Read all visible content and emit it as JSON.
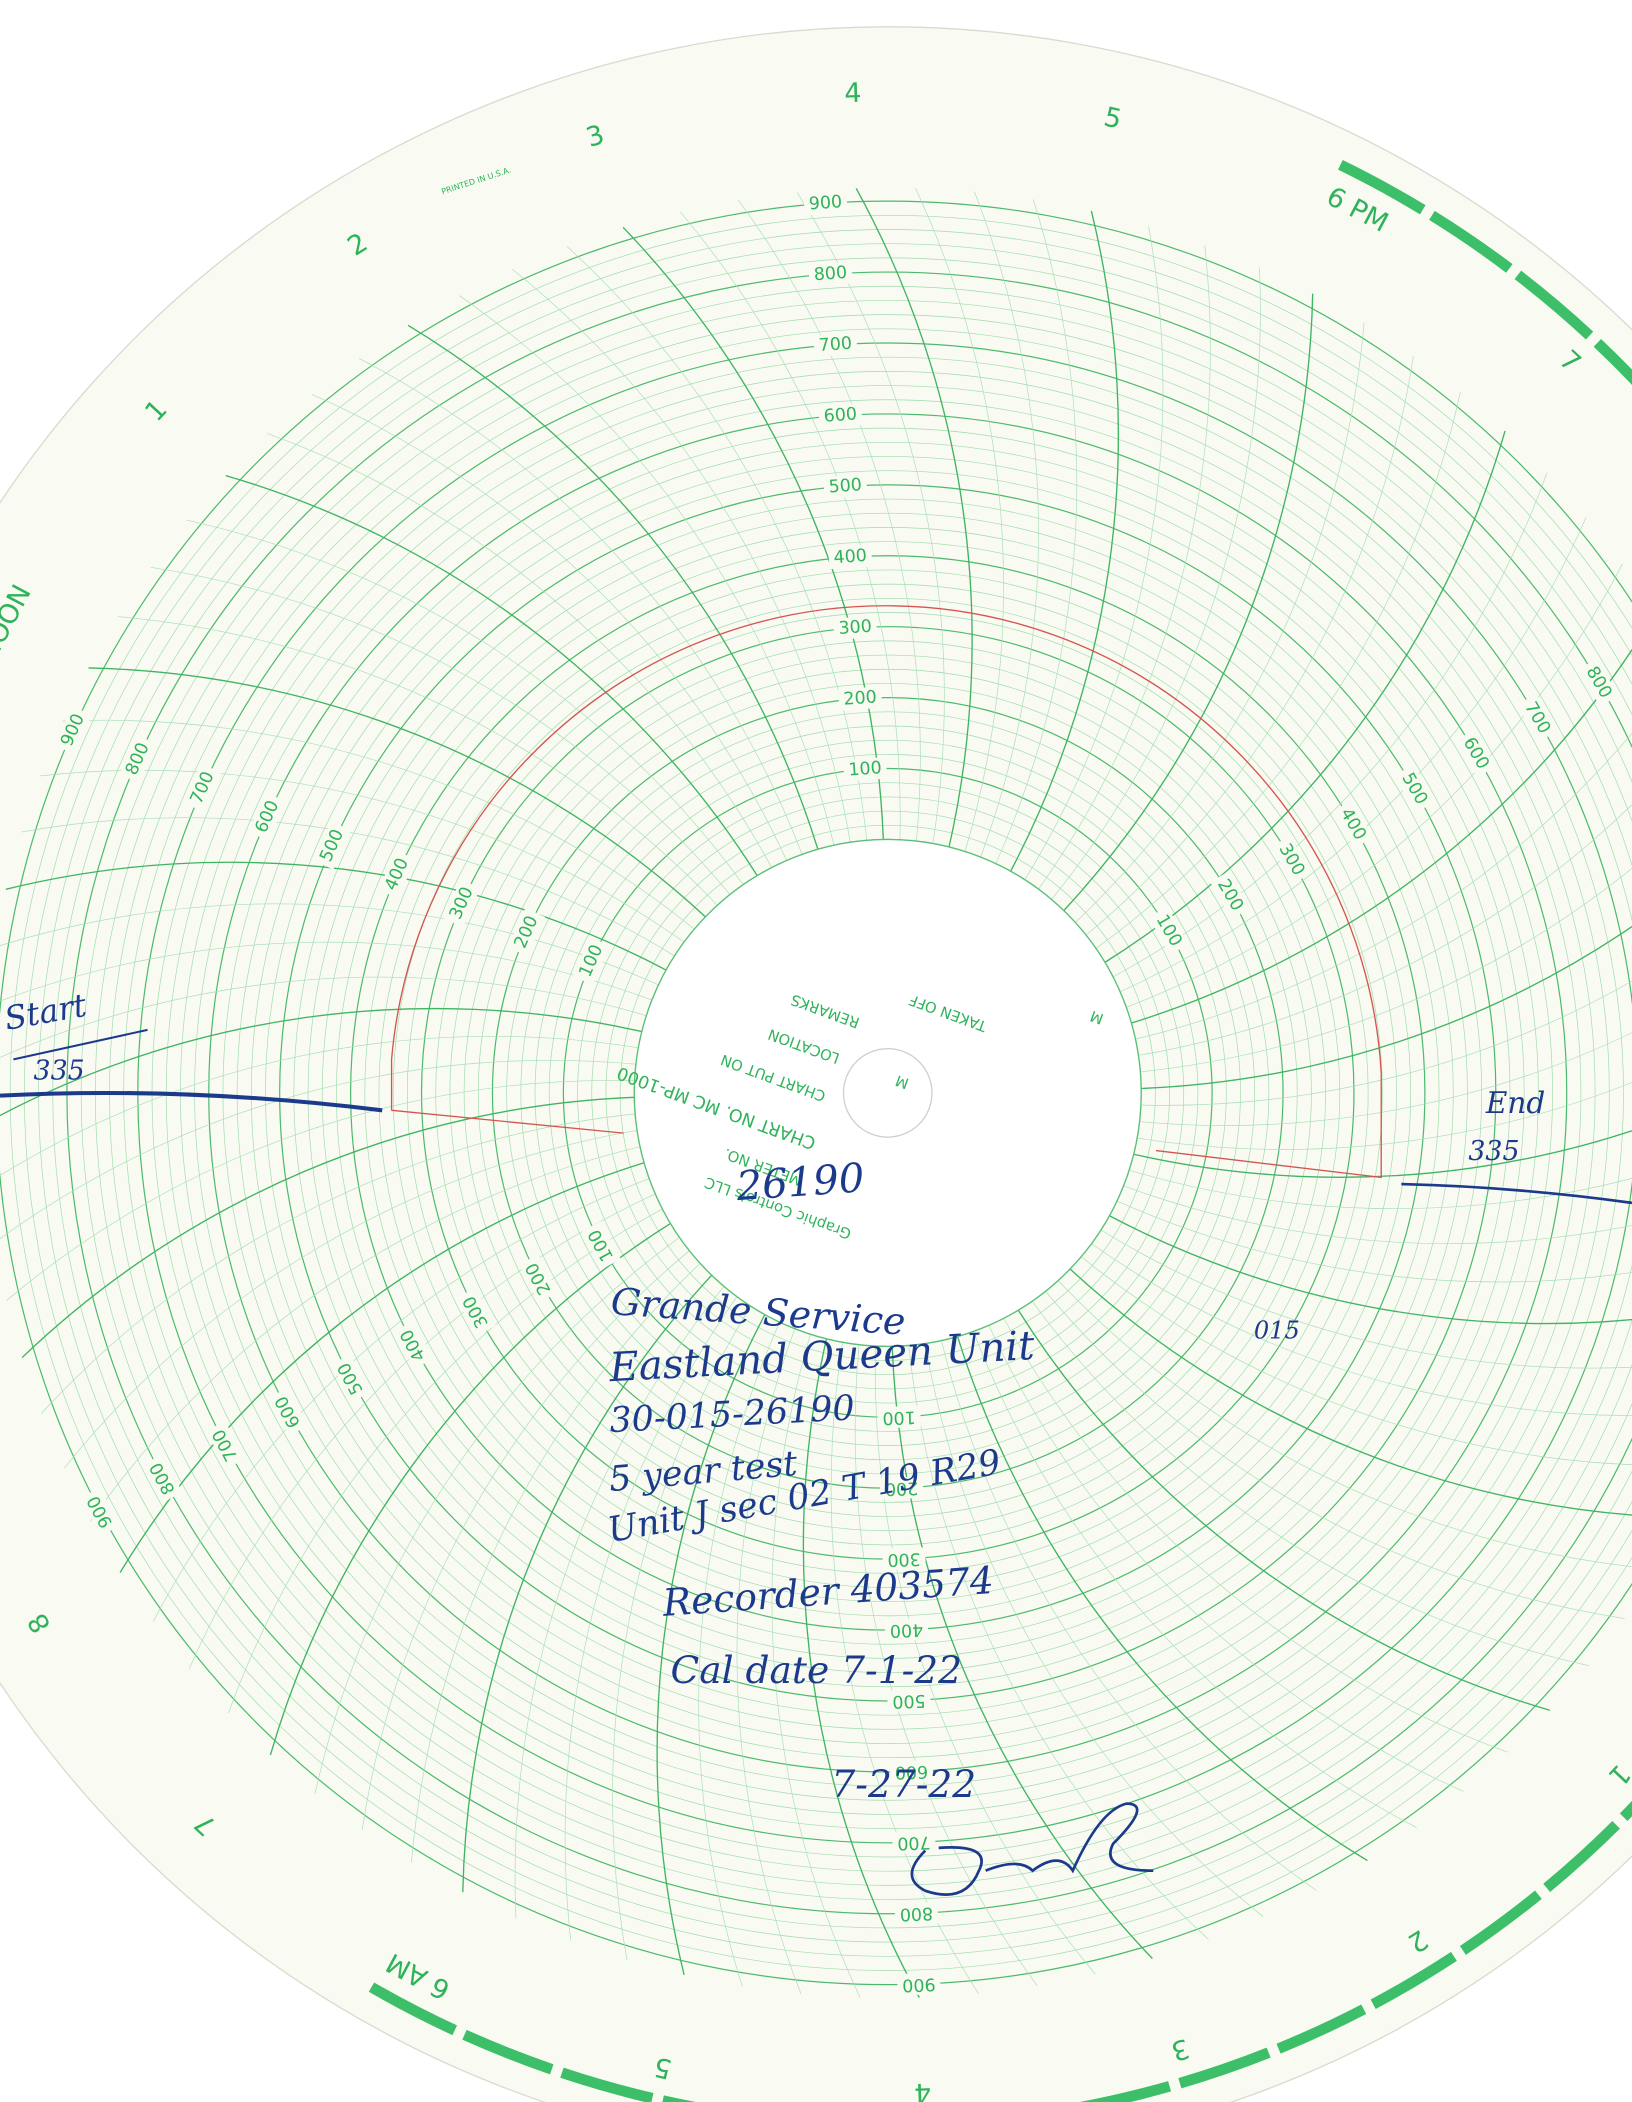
{
  "chart_paper": {
    "printed": "PRINTED IN U.S.A.",
    "hours": [
      "NOON",
      "1",
      "2",
      "3",
      "4",
      "5",
      "6 PM",
      "7",
      "1",
      "2",
      "3",
      "4",
      "5",
      "6 AM",
      "7",
      "8"
    ],
    "scale_labels": [
      "100",
      "200",
      "300",
      "400",
      "500",
      "600",
      "700",
      "800",
      "900"
    ],
    "hub": {
      "maker": "Graphic Controls LLC",
      "meter_no": "METER NO.",
      "chart_no": "CHART NO. MC MP-1000",
      "chart_put_on": "CHART PUT ON",
      "location": "LOCATION",
      "m1": "M",
      "remarks": "REMARKS",
      "taken_off": "TAKEN OFF",
      "m2": "M"
    }
  },
  "handwriting": {
    "start": "Start",
    "start_value": "335",
    "end": "End",
    "end_value": "335",
    "well_no": "26190",
    "company": "Grande Service",
    "lease": "Eastland Queen Unit",
    "county": "015",
    "api": "30-015-26190",
    "test": "5 year test",
    "location": "Unit J sec 02 T 19 R29",
    "recorder": "Recorder 403574",
    "cal_date": "Cal date 7-1-22",
    "date": "7-27-22"
  }
}
